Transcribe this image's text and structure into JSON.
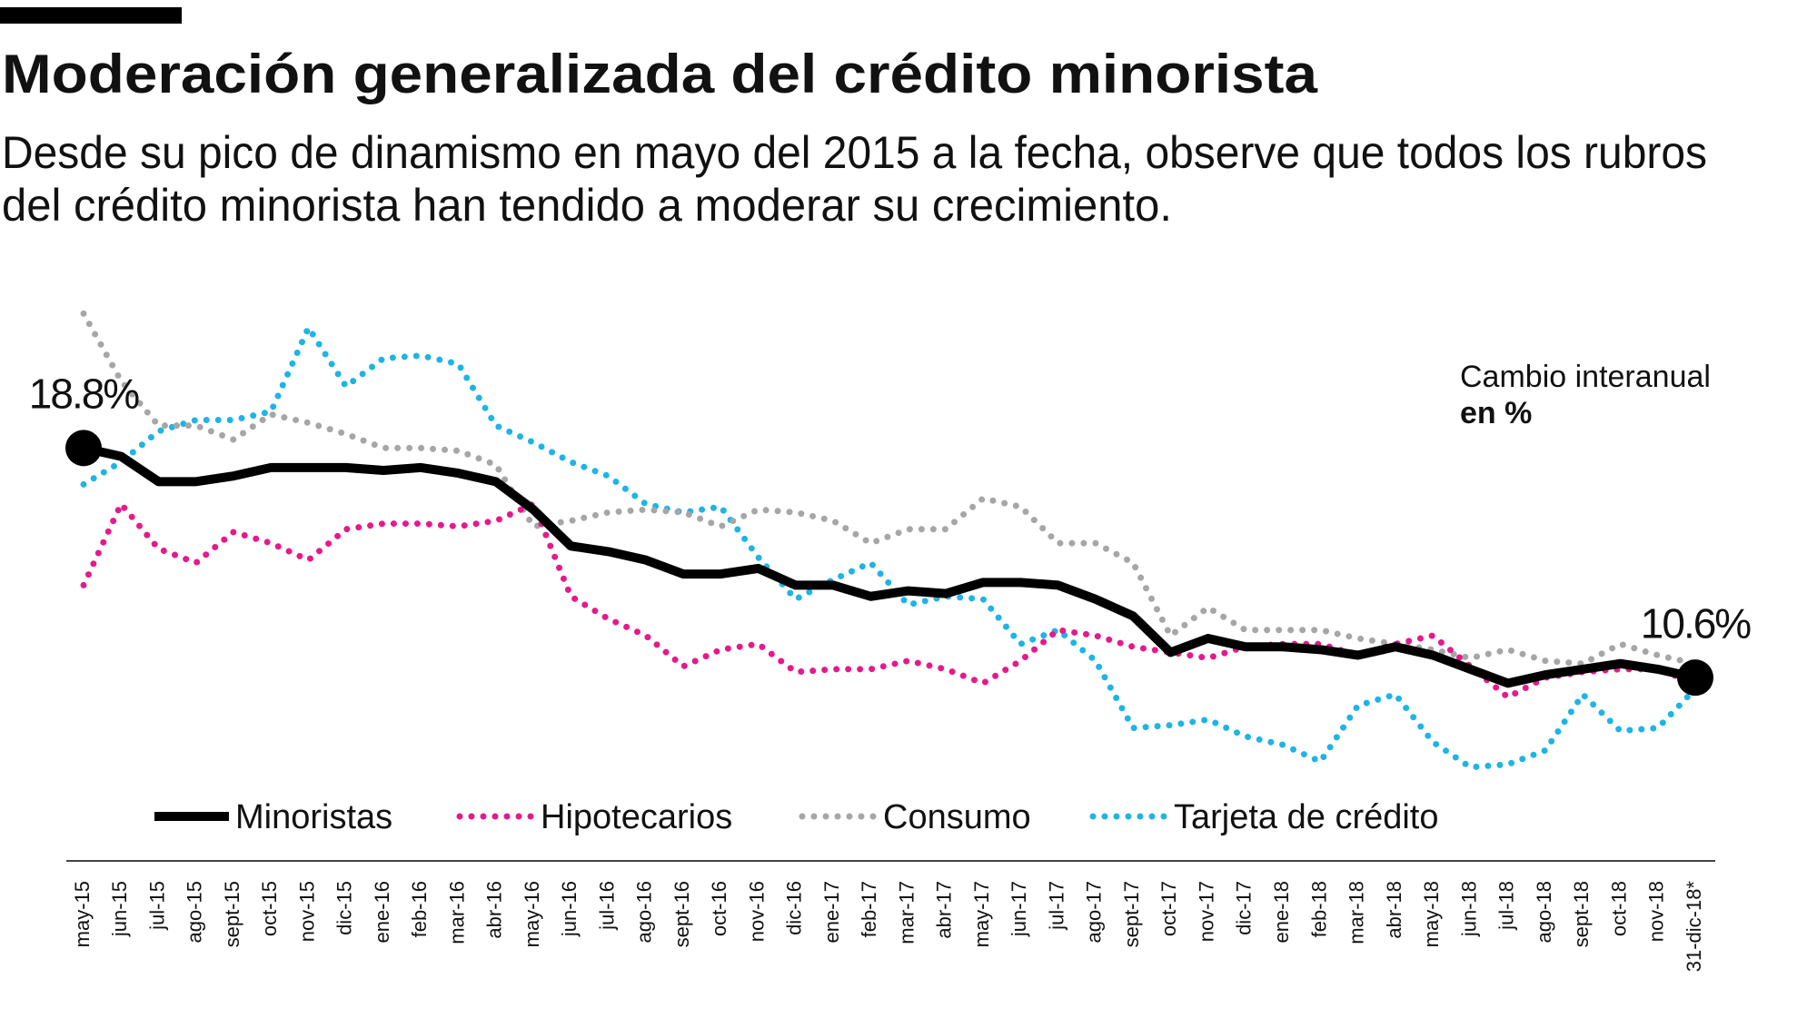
{
  "chart_data": {
    "type": "line",
    "title": "Moderación generalizada del crédito minorista",
    "subtitle": [
      "Desde su pico de dinamismo en mayo del 2015 a la fecha, observe que todos los rubros",
      "del crédito minorista han tendido a moderar su crecimiento."
    ],
    "annotations": [
      "Cambio interanual",
      "en %"
    ],
    "categories": [
      "may-15",
      "jun-15",
      "jul-15",
      "ago-15",
      "sept-15",
      "oct-15",
      "nov-15",
      "dic-15",
      "ene-16",
      "feb-16",
      "mar-16",
      "abr-16",
      "may-16",
      "jun-16",
      "jul-16",
      "ago-16",
      "sept-16",
      "oct-16",
      "nov-16",
      "dic-16",
      "ene-17",
      "feb-17",
      "mar-17",
      "abr-17",
      "may-17",
      "jun-17",
      "jul-17",
      "ago-17",
      "sept-17",
      "oct-17",
      "nov-17",
      "dic-17",
      "ene-18",
      "feb-18",
      "mar-18",
      "abr-18",
      "may-18",
      "jun-18",
      "jul-18",
      "ago-18",
      "sept-18",
      "oct-18",
      "nov-18",
      "31-dic-18*"
    ],
    "ylim": [
      6,
      24
    ],
    "series": [
      {
        "name": "Minoristas",
        "color": "#000000",
        "line_style": "solid",
        "values": [
          18.8,
          18.5,
          17.6,
          17.6,
          17.8,
          18.1,
          18.1,
          18.1,
          18.0,
          18.1,
          17.9,
          17.6,
          16.6,
          15.3,
          15.1,
          14.8,
          14.3,
          14.3,
          14.5,
          13.9,
          13.9,
          13.5,
          13.7,
          13.6,
          14.0,
          14.0,
          13.9,
          13.4,
          12.8,
          11.5,
          12.0,
          11.7,
          11.7,
          11.6,
          11.4,
          11.7,
          11.4,
          10.9,
          10.4,
          10.7,
          10.9,
          11.1,
          10.9,
          10.6
        ],
        "value_labels": [
          "18.8%",
          null,
          null,
          null,
          null,
          null,
          null,
          null,
          null,
          null,
          null,
          null,
          null,
          null,
          null,
          null,
          null,
          null,
          null,
          null,
          null,
          null,
          null,
          null,
          null,
          null,
          null,
          null,
          null,
          null,
          null,
          null,
          null,
          null,
          null,
          null,
          null,
          null,
          null,
          null,
          null,
          null,
          null,
          "10.6%"
        ]
      },
      {
        "name": "Hipotecarios",
        "color": "#e6198c",
        "line_style": "dotted",
        "values": [
          13.9,
          16.8,
          15.2,
          14.7,
          15.8,
          15.4,
          14.8,
          15.9,
          16.1,
          16.1,
          16.0,
          16.2,
          16.8,
          13.5,
          12.7,
          12.1,
          11.0,
          11.6,
          11.8,
          10.8,
          10.9,
          10.9,
          11.2,
          10.9,
          10.4,
          11.2,
          12.3,
          12.1,
          11.7,
          11.5,
          11.3,
          11.7,
          11.8,
          11.8,
          11.4,
          11.8,
          12.1,
          11.0,
          9.9,
          10.6,
          10.8,
          10.9,
          10.9,
          10.4
        ]
      },
      {
        "name": "Consumo",
        "color": "#a6a6a6",
        "line_style": "dotted",
        "values": [
          23.6,
          21.2,
          19.6,
          19.6,
          19.1,
          20.0,
          19.7,
          19.3,
          18.8,
          18.8,
          18.7,
          18.2,
          16.0,
          16.2,
          16.5,
          16.6,
          16.5,
          16.0,
          16.6,
          16.5,
          16.2,
          15.4,
          15.9,
          15.9,
          17.0,
          16.7,
          15.4,
          15.4,
          14.7,
          12.1,
          13.1,
          12.3,
          12.3,
          12.3,
          12.0,
          11.8,
          11.6,
          11.3,
          11.6,
          11.2,
          11.1,
          11.8,
          11.4,
          11.1
        ]
      },
      {
        "name": "Tarjeta de crédito",
        "color": "#1eb4e6",
        "line_style": "dotted",
        "values": [
          17.5,
          18.3,
          19.4,
          19.8,
          19.8,
          20.1,
          23.1,
          21.0,
          22.0,
          22.1,
          21.8,
          19.6,
          19.0,
          18.3,
          17.8,
          16.8,
          16.5,
          16.7,
          14.9,
          13.4,
          14.1,
          14.7,
          13.2,
          13.5,
          13.4,
          11.8,
          12.3,
          11.2,
          8.8,
          8.9,
          9.1,
          8.5,
          8.2,
          7.6,
          9.6,
          10.0,
          8.3,
          7.4,
          7.5,
          8.0,
          10.0,
          8.7,
          8.8,
          10.2
        ]
      }
    ]
  }
}
